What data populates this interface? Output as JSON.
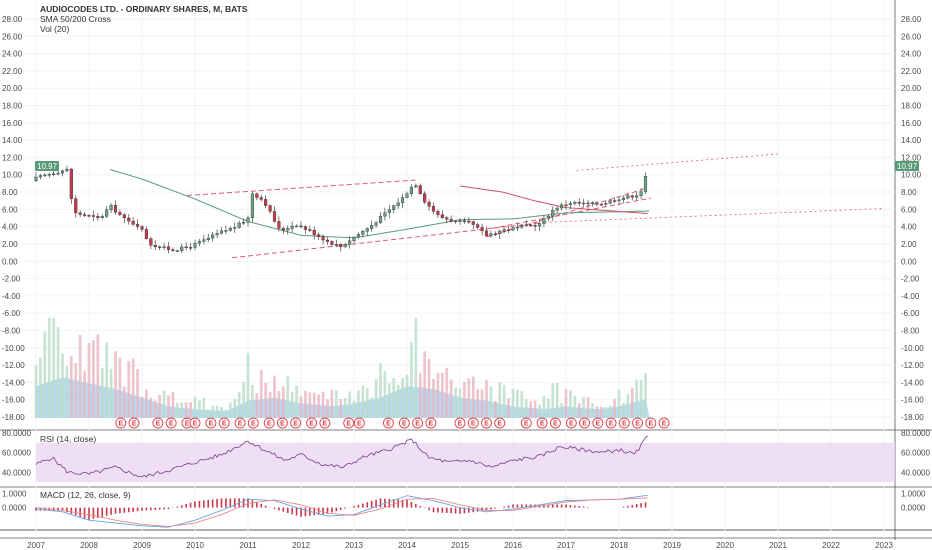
{
  "header": {
    "title": "AUDIOCODES LTD. - ORDINARY SHARES, M, BATS",
    "indicator_1": "SMA 50/200 Cross",
    "indicator_2": "Vol (20)"
  },
  "last_price_label": "10.97",
  "panes": {
    "rsi_label": "RSI (14, close)",
    "macd_label": "MACD (12, 26, close, 9)"
  },
  "colors": {
    "up": "#6aa583",
    "down": "#c8394a",
    "sma_slow": "#5a9a7a",
    "sma_fast": "#d0506a",
    "volume_area": "#9dd0f2",
    "rsi_line": "#7b3a8e",
    "rsi_band": "#ead7f3",
    "macd_line": "#6aa3e0",
    "signal_line": "#e58a8a",
    "trendline": "#e05a78",
    "price_tag": "#5b9a77",
    "earnings": "#e0404a"
  },
  "chart_data": [
    {
      "type": "candlestick",
      "name": "price",
      "y_ticks": [
        "28.00",
        "26.00",
        "24.00",
        "22.00",
        "20.00",
        "18.00",
        "16.00",
        "14.00",
        "12.00",
        "10.00",
        "8.00",
        "6.00",
        "4.00",
        "2.00",
        "0.00",
        "-2.00",
        "-4.00",
        "-6.00",
        "-8.00",
        "-10.00",
        "-12.00",
        "-14.00",
        "-16.00",
        "-18.00"
      ],
      "y_range": [
        -19.5,
        29.5
      ],
      "x_ticks": [
        "2007",
        "2008",
        "2009",
        "2010",
        "2011",
        "2012",
        "2013",
        "2014",
        "2015",
        "2016",
        "2017",
        "2018",
        "2019",
        "2020",
        "2021",
        "2022",
        "2023"
      ],
      "x_start": 2007.0,
      "monthly_close_keypoints": [
        [
          2007.0,
          9.6
        ],
        [
          2007.3,
          10.2
        ],
        [
          2007.6,
          10.6
        ],
        [
          2007.7,
          5.6
        ],
        [
          2007.95,
          5.3
        ],
        [
          2008.2,
          4.9
        ],
        [
          2008.4,
          6.4
        ],
        [
          2008.7,
          4.7
        ],
        [
          2008.95,
          4.1
        ],
        [
          2009.15,
          2.0
        ],
        [
          2009.35,
          1.6
        ],
        [
          2009.6,
          1.3
        ],
        [
          2009.9,
          1.7
        ],
        [
          2010.2,
          2.5
        ],
        [
          2010.5,
          3.4
        ],
        [
          2010.8,
          4.1
        ],
        [
          2011.0,
          5.0
        ],
        [
          2011.05,
          8.0
        ],
        [
          2011.3,
          7.0
        ],
        [
          2011.6,
          3.5
        ],
        [
          2011.9,
          4.3
        ],
        [
          2012.2,
          3.4
        ],
        [
          2012.5,
          2.3
        ],
        [
          2012.75,
          1.7
        ],
        [
          2013.0,
          2.8
        ],
        [
          2013.3,
          4.0
        ],
        [
          2013.6,
          5.6
        ],
        [
          2013.9,
          7.2
        ],
        [
          2014.15,
          9.1
        ],
        [
          2014.35,
          6.8
        ],
        [
          2014.6,
          5.2
        ],
        [
          2014.9,
          4.6
        ],
        [
          2015.2,
          4.4
        ],
        [
          2015.5,
          3.0
        ],
        [
          2015.8,
          3.6
        ],
        [
          2016.1,
          3.9
        ],
        [
          2016.5,
          4.3
        ],
        [
          2016.8,
          6.2
        ],
        [
          2017.1,
          6.8
        ],
        [
          2017.4,
          6.6
        ],
        [
          2017.7,
          6.7
        ],
        [
          2017.95,
          7.2
        ],
        [
          2018.2,
          7.5
        ],
        [
          2018.4,
          7.8
        ],
        [
          2018.5,
          9.7
        ],
        [
          2018.58,
          10.97
        ]
      ],
      "last_close": 10.97,
      "trendlines": [
        {
          "from": [
            2009.85,
            7.6
          ],
          "to": [
            2014.2,
            9.4
          ],
          "style": "dashed"
        },
        {
          "from": [
            2010.7,
            0.4
          ],
          "to": [
            2016.6,
            4.5
          ],
          "style": "dashed"
        },
        {
          "from": [
            2015.5,
            2.8
          ],
          "to": [
            2018.5,
            8.4
          ],
          "style": "dashed"
        },
        {
          "from": [
            2015.6,
            3.8
          ],
          "to": [
            2018.6,
            7.3
          ],
          "style": "dashed"
        },
        {
          "from": [
            2017.2,
            10.5
          ],
          "to": [
            2021.0,
            12.4
          ],
          "style": "dotted"
        },
        {
          "from": [
            2016.6,
            4.5
          ],
          "to": [
            2023.0,
            6.1
          ],
          "style": "dotted"
        }
      ]
    },
    {
      "type": "line",
      "name": "SMA 50",
      "points": [
        [
          2008.4,
          10.6
        ],
        [
          2009.0,
          9.5
        ],
        [
          2010.0,
          7.2
        ],
        [
          2011.0,
          4.6
        ],
        [
          2012.0,
          3.0
        ],
        [
          2013.0,
          2.7
        ],
        [
          2014.0,
          3.7
        ],
        [
          2015.0,
          4.8
        ],
        [
          2016.0,
          4.9
        ],
        [
          2017.0,
          5.6
        ],
        [
          2018.58,
          5.8
        ]
      ]
    },
    {
      "type": "line",
      "name": "SMA 200",
      "points": [
        [
          2015.0,
          8.7
        ],
        [
          2015.8,
          8.0
        ],
        [
          2016.4,
          7.0
        ],
        [
          2017.0,
          6.2
        ],
        [
          2018.58,
          5.5
        ]
      ]
    },
    {
      "type": "bar",
      "name": "Vol (20)",
      "note": "relative monthly volume 0-1 with 20-period average area",
      "profile": [
        [
          2007.0,
          0.55
        ],
        [
          2007.5,
          0.7
        ],
        [
          2008.0,
          0.6
        ],
        [
          2008.5,
          0.5
        ],
        [
          2009.0,
          0.35
        ],
        [
          2009.5,
          0.2
        ],
        [
          2010.0,
          0.15
        ],
        [
          2010.6,
          0.12
        ],
        [
          2011.0,
          0.3
        ],
        [
          2011.5,
          0.35
        ],
        [
          2012.0,
          0.25
        ],
        [
          2012.6,
          0.2
        ],
        [
          2013.0,
          0.25
        ],
        [
          2013.5,
          0.35
        ],
        [
          2014.0,
          0.55
        ],
        [
          2014.5,
          0.5
        ],
        [
          2015.0,
          0.35
        ],
        [
          2015.5,
          0.3
        ],
        [
          2016.0,
          0.2
        ],
        [
          2016.6,
          0.15
        ],
        [
          2017.0,
          0.2
        ],
        [
          2017.6,
          0.15
        ],
        [
          2018.0,
          0.2
        ],
        [
          2018.58,
          0.35
        ]
      ],
      "spikes": [
        [
          2007.3,
          1.0
        ],
        [
          2008.0,
          0.75
        ],
        [
          2011.0,
          0.65
        ],
        [
          2013.5,
          0.55
        ],
        [
          2014.15,
          1.0
        ],
        [
          2016.8,
          0.35
        ],
        [
          2018.5,
          0.45
        ],
        [
          2018.58,
          0.5
        ]
      ],
      "earnings_markers": [
        2008.6,
        2008.85,
        2009.3,
        2009.55,
        2009.85,
        2010.0,
        2010.3,
        2010.55,
        2010.85,
        2011.1,
        2011.4,
        2011.65,
        2011.9,
        2012.2,
        2012.45,
        2012.9,
        2013.1,
        2013.65,
        2013.95,
        2014.2,
        2014.45,
        2015.0,
        2015.25,
        2015.5,
        2015.75,
        2016.25,
        2016.55,
        2016.8,
        2017.1,
        2017.35,
        2017.6,
        2017.85,
        2018.1,
        2018.35,
        2018.6,
        2018.85
      ]
    },
    {
      "type": "line",
      "name": "RSI (14, close)",
      "y_ticks": [
        "80.0000",
        "60.0000",
        "40.0000"
      ],
      "y_range": [
        25,
        82
      ],
      "band": [
        30,
        70
      ],
      "points": [
        [
          2007.0,
          48
        ],
        [
          2007.3,
          55
        ],
        [
          2007.6,
          40
        ],
        [
          2008.0,
          38
        ],
        [
          2008.5,
          45
        ],
        [
          2009.0,
          35
        ],
        [
          2009.5,
          42
        ],
        [
          2010.0,
          50
        ],
        [
          2010.5,
          58
        ],
        [
          2011.0,
          72
        ],
        [
          2011.3,
          63
        ],
        [
          2011.7,
          52
        ],
        [
          2012.0,
          58
        ],
        [
          2012.4,
          48
        ],
        [
          2012.8,
          45
        ],
        [
          2013.2,
          56
        ],
        [
          2013.6,
          62
        ],
        [
          2014.1,
          73
        ],
        [
          2014.4,
          55
        ],
        [
          2014.8,
          50
        ],
        [
          2015.2,
          52
        ],
        [
          2015.6,
          45
        ],
        [
          2016.0,
          52
        ],
        [
          2016.5,
          56
        ],
        [
          2016.9,
          66
        ],
        [
          2017.3,
          63
        ],
        [
          2017.7,
          60
        ],
        [
          2018.0,
          63
        ],
        [
          2018.3,
          58
        ],
        [
          2018.58,
          80
        ]
      ]
    },
    {
      "type": "line",
      "name": "MACD (12, 26, close, 9)",
      "y_ticks": [
        "1.0000",
        "0.0000"
      ],
      "y_range": [
        -1.6,
        1.4
      ],
      "macd": [
        [
          2007.0,
          -0.1
        ],
        [
          2007.5,
          -0.3
        ],
        [
          2008.0,
          -0.9
        ],
        [
          2008.5,
          -1.1
        ],
        [
          2009.0,
          -1.3
        ],
        [
          2009.5,
          -1.4
        ],
        [
          2010.0,
          -0.9
        ],
        [
          2010.5,
          -0.2
        ],
        [
          2011.0,
          0.6
        ],
        [
          2011.5,
          0.5
        ],
        [
          2012.0,
          -0.1
        ],
        [
          2012.5,
          -0.6
        ],
        [
          2013.0,
          -0.5
        ],
        [
          2013.5,
          0.2
        ],
        [
          2014.0,
          0.85
        ],
        [
          2014.5,
          0.5
        ],
        [
          2015.0,
          0.0
        ],
        [
          2015.5,
          -0.3
        ],
        [
          2016.0,
          -0.1
        ],
        [
          2016.5,
          0.2
        ],
        [
          2017.0,
          0.5
        ],
        [
          2017.5,
          0.55
        ],
        [
          2018.0,
          0.6
        ],
        [
          2018.58,
          0.9
        ]
      ],
      "signal": [
        [
          2007.0,
          0.0
        ],
        [
          2007.5,
          -0.2
        ],
        [
          2008.0,
          -0.5
        ],
        [
          2008.5,
          -0.9
        ],
        [
          2009.0,
          -1.2
        ],
        [
          2009.5,
          -1.35
        ],
        [
          2010.0,
          -1.1
        ],
        [
          2010.5,
          -0.5
        ],
        [
          2011.0,
          0.3
        ],
        [
          2011.5,
          0.55
        ],
        [
          2012.0,
          0.2
        ],
        [
          2012.5,
          -0.4
        ],
        [
          2013.0,
          -0.55
        ],
        [
          2013.5,
          -0.1
        ],
        [
          2014.0,
          0.6
        ],
        [
          2014.5,
          0.65
        ],
        [
          2015.0,
          0.2
        ],
        [
          2015.5,
          -0.2
        ],
        [
          2016.0,
          -0.2
        ],
        [
          2016.5,
          0.1
        ],
        [
          2017.0,
          0.4
        ],
        [
          2017.5,
          0.55
        ],
        [
          2018.0,
          0.6
        ],
        [
          2018.58,
          0.7
        ]
      ]
    }
  ]
}
